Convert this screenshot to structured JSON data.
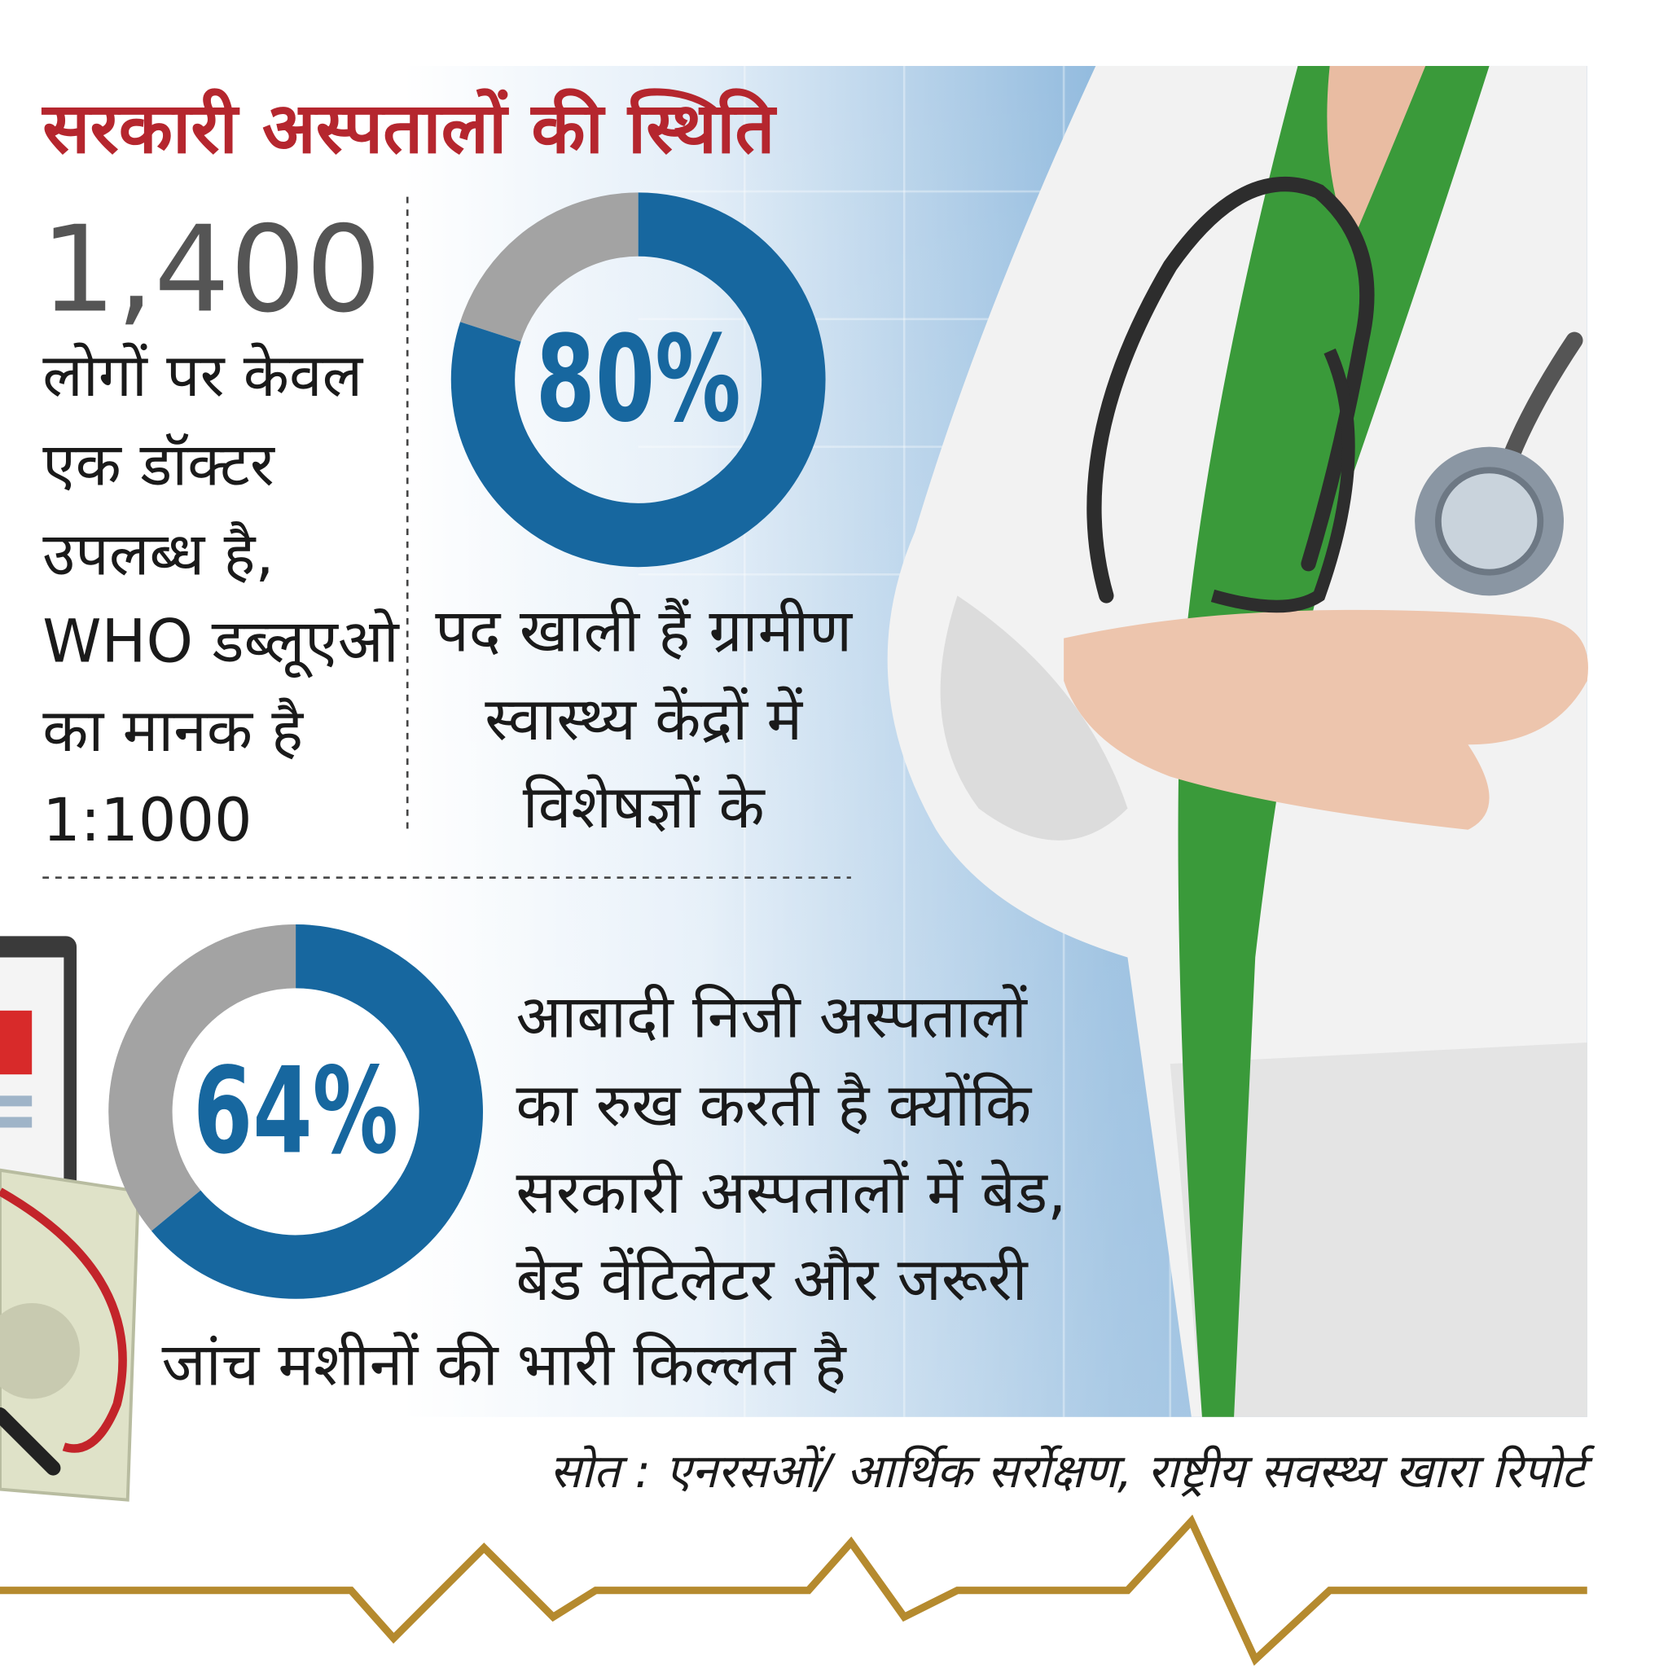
{
  "title": "सरकारी अस्पतालों की स्थिति",
  "stat": {
    "number": "1,400",
    "lines": [
      "लोगों पर केवल",
      "एक डॉक्टर",
      "उपलब्ध है,",
      "WHO डब्लूएओ",
      "का मानक है",
      "1:1000"
    ]
  },
  "donuts": [
    {
      "value": 80,
      "label": "80%",
      "lines": [
        "पद खाली हैं ग्रामीण",
        "स्वास्थ्य केंद्रों में",
        "विशेषज्ञों के"
      ]
    },
    {
      "value": 64,
      "label": "64%",
      "lines": [
        "आबादी निजी अस्पतालों",
        "का रुख करती है क्योंकि",
        "सरकारी अस्पतालों में बेड,",
        "बेड वेंटिलेटर और जरूरी",
        "जांच मशीनों की भारी किल्लत है"
      ]
    }
  ],
  "source": "सोत : एनरसओं/ आर्थिक सर्रोक्षण, राष्ट्रीय सवस्थ्य खारा रिपोर्ट"
}
